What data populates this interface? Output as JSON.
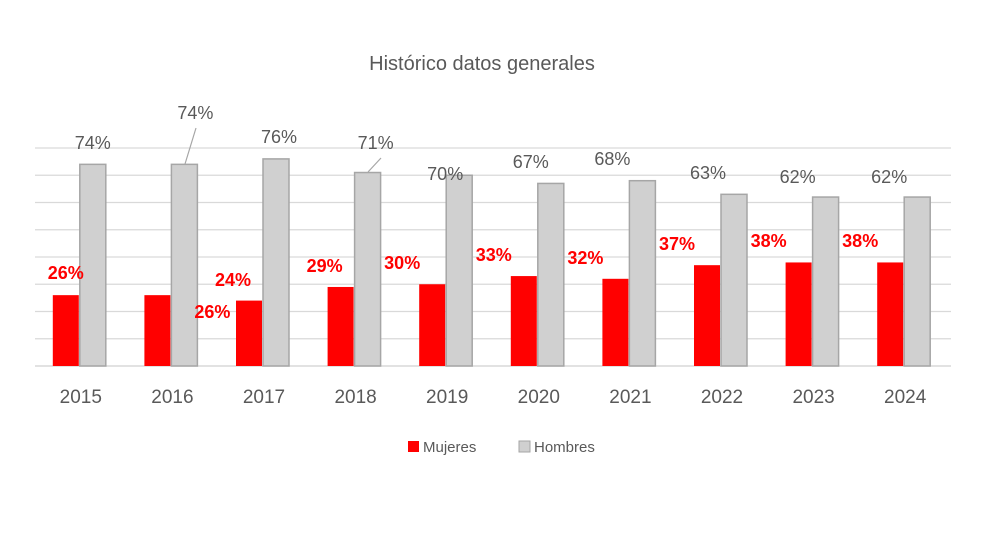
{
  "chart_data": {
    "type": "bar",
    "title": "Histórico datos generales",
    "categories": [
      "2015",
      "2016",
      "2017",
      "2018",
      "2019",
      "2020",
      "2021",
      "2022",
      "2023",
      "2024"
    ],
    "series": [
      {
        "name": "Mujeres",
        "color": "#ff0000",
        "values": [
          26,
          26,
          24,
          29,
          30,
          33,
          32,
          37,
          38,
          38
        ],
        "labels": [
          "26%",
          "26%",
          "24%",
          "29%",
          "30%",
          "33%",
          "32%",
          "37%",
          "38%",
          "38%"
        ]
      },
      {
        "name": "Hombres",
        "color": "#d0d0d0",
        "values": [
          74,
          74,
          76,
          71,
          70,
          67,
          68,
          63,
          62,
          62
        ],
        "labels": [
          "74%",
          "74%",
          "76%",
          "71%",
          "70%",
          "67%",
          "68%",
          "63%",
          "62%",
          "62%"
        ]
      }
    ],
    "xlabel": "",
    "ylabel": "",
    "ylim": [
      0,
      80
    ],
    "grid": true,
    "gridline_step": 10,
    "legend": "bottom"
  }
}
